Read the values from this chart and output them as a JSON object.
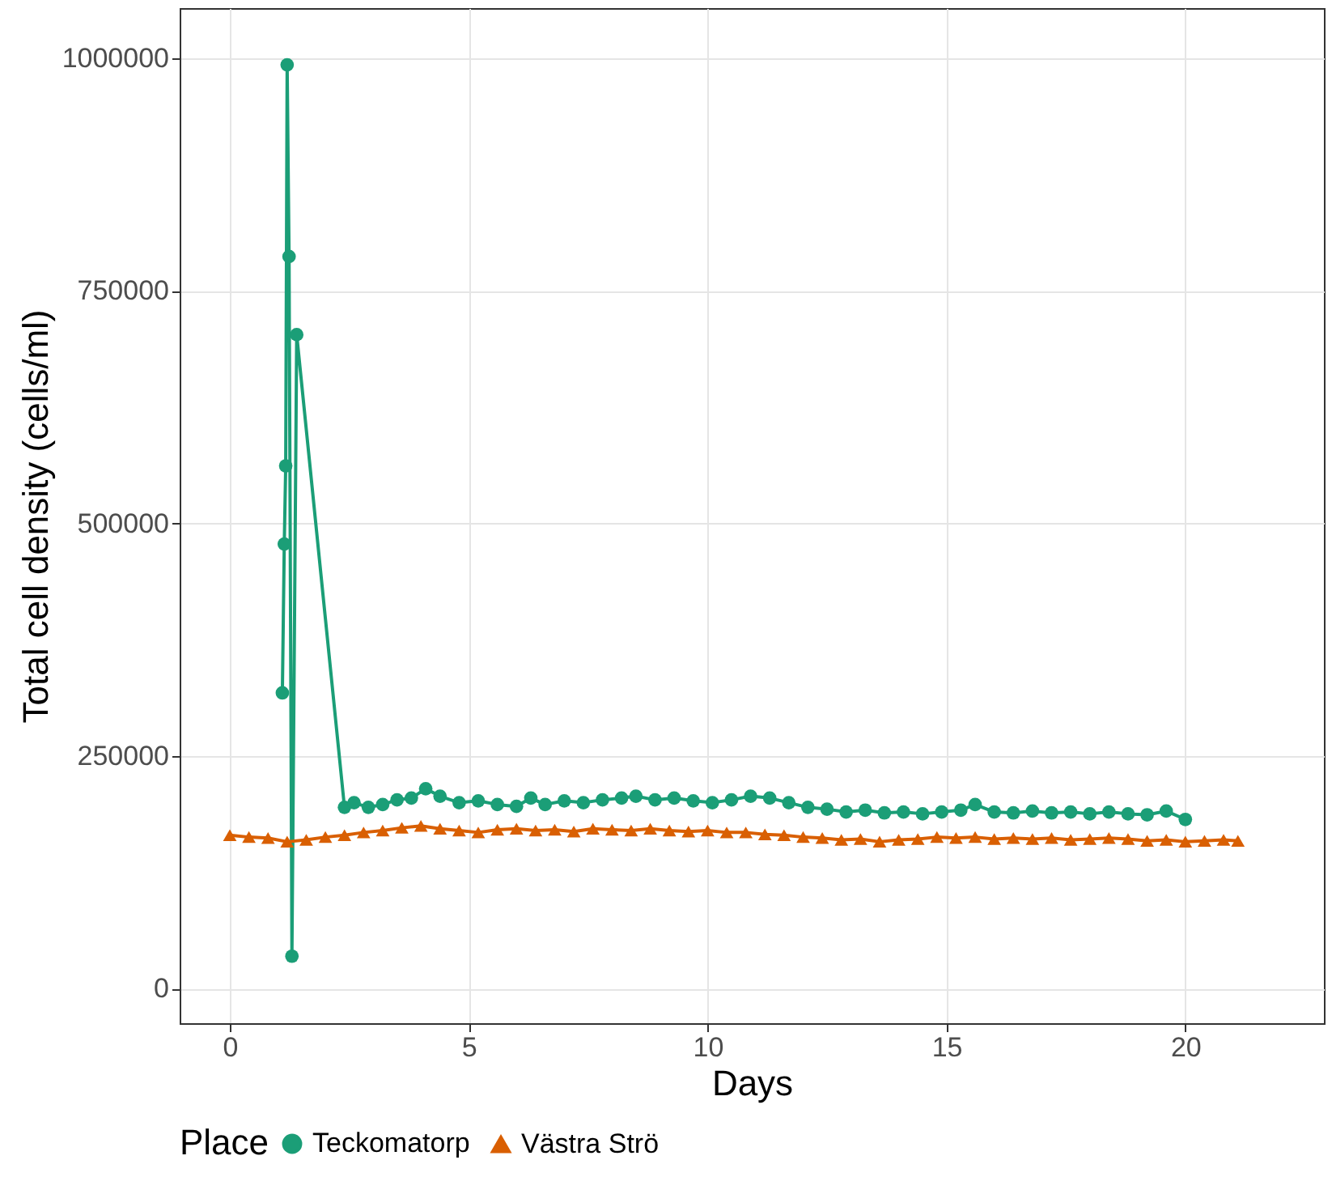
{
  "chart_data": {
    "type": "line",
    "xlabel": "Days",
    "ylabel": "Total cell density (cells/ml)",
    "legend_title": "Place",
    "xlim": [
      -1.05,
      22.9
    ],
    "xticks": [
      0,
      5,
      10,
      15,
      20
    ],
    "ylim": [
      -37000,
      1054000
    ],
    "yticks": [
      0,
      250000,
      500000,
      750000,
      1000000
    ],
    "grid": true,
    "legend": "bottom",
    "series": [
      {
        "name": "Teckomatorp",
        "color": "#1b9e77",
        "marker": "circle",
        "x": [
          1.1,
          1.14,
          1.17,
          1.2,
          1.24,
          1.3,
          1.4,
          2.4,
          2.6,
          2.9,
          3.2,
          3.5,
          3.8,
          4.1,
          4.4,
          4.8,
          5.2,
          5.6,
          6.0,
          6.3,
          6.6,
          7.0,
          7.4,
          7.8,
          8.2,
          8.5,
          8.9,
          9.3,
          9.7,
          10.1,
          10.5,
          10.9,
          11.3,
          11.7,
          12.1,
          12.5,
          12.9,
          13.3,
          13.7,
          14.1,
          14.5,
          14.9,
          15.3,
          15.6,
          16.0,
          16.4,
          16.8,
          17.2,
          17.6,
          18.0,
          18.4,
          18.8,
          19.2,
          19.6,
          20.0
        ],
        "values": [
          318000,
          478000,
          562000,
          993000,
          787000,
          35000,
          703000,
          195000,
          200000,
          195000,
          198000,
          203000,
          205000,
          215000,
          207000,
          200000,
          202000,
          198000,
          196000,
          205000,
          198000,
          202000,
          200000,
          203000,
          205000,
          207000,
          203000,
          205000,
          202000,
          200000,
          203000,
          207000,
          205000,
          200000,
          195000,
          193000,
          190000,
          192000,
          189000,
          190000,
          188000,
          190000,
          192000,
          198000,
          190000,
          189000,
          191000,
          189000,
          190000,
          188000,
          190000,
          188000,
          187000,
          191000,
          182000
        ]
      },
      {
        "name": "Västra Strö",
        "color": "#d95f02",
        "marker": "triangle",
        "x": [
          0,
          0.4,
          0.8,
          1.2,
          1.6,
          2.0,
          2.4,
          2.8,
          3.2,
          3.6,
          4.0,
          4.4,
          4.8,
          5.2,
          5.6,
          6.0,
          6.4,
          6.8,
          7.2,
          7.6,
          8.0,
          8.4,
          8.8,
          9.2,
          9.6,
          10.0,
          10.4,
          10.8,
          11.2,
          11.6,
          12.0,
          12.4,
          12.8,
          13.2,
          13.6,
          14.0,
          14.4,
          14.8,
          15.2,
          15.6,
          16.0,
          16.4,
          16.8,
          17.2,
          17.6,
          18.0,
          18.4,
          18.8,
          19.2,
          19.6,
          20.0,
          20.4,
          20.8,
          21.1
        ],
        "values": [
          165000,
          163000,
          162000,
          158000,
          160000,
          163000,
          165000,
          168000,
          170000,
          173000,
          175000,
          172000,
          170000,
          168000,
          171000,
          172000,
          170000,
          171000,
          169000,
          172000,
          171000,
          170000,
          172000,
          170000,
          169000,
          170000,
          168000,
          168000,
          166000,
          165000,
          163000,
          162000,
          160000,
          161000,
          158000,
          160000,
          161000,
          163000,
          162000,
          163000,
          161000,
          162000,
          161000,
          162000,
          160000,
          161000,
          162000,
          161000,
          159000,
          160000,
          158000,
          159000,
          160000,
          159000
        ]
      }
    ]
  }
}
